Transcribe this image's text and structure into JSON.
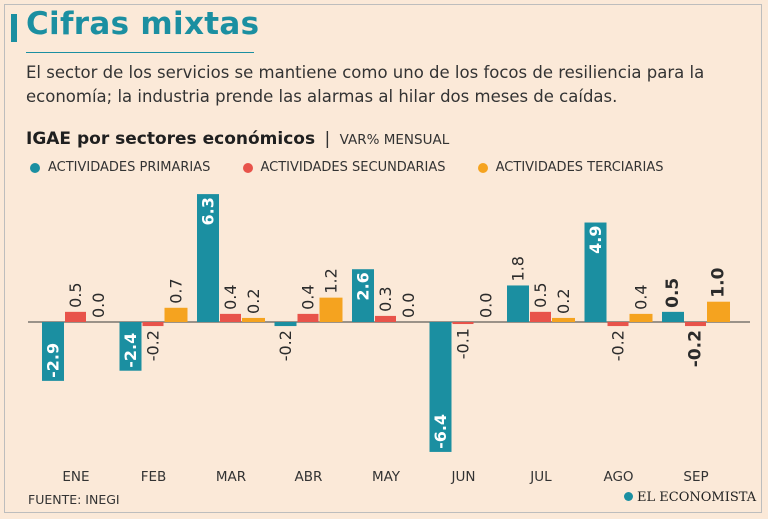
{
  "header": {
    "title": "Cifras mixtas",
    "subtitle": "El sector de los servicios se mantiene como uno de los focos de resiliencia para la economía; la industria prende las alarmas al hilar dos meses de caídas."
  },
  "chart_heading": {
    "title": "IGAE por sectores económicos",
    "separator": "|",
    "unit": "VAR% MENSUAL"
  },
  "legend": [
    {
      "label": "ACTIVIDADES PRIMARIAS",
      "color": "#1b8fa1"
    },
    {
      "label": "ACTIVIDADES SECUNDARIAS",
      "color": "#e8534a"
    },
    {
      "label": "ACTIVIDADES TERCIARIAS",
      "color": "#f5a31f"
    }
  ],
  "chart_data": {
    "type": "bar",
    "title": "IGAE por sectores económicos",
    "ylabel": "VAR% MENSUAL",
    "categories": [
      "ENE",
      "FEB",
      "MAR",
      "ABR",
      "MAY",
      "JUN",
      "JUL",
      "AGO",
      "SEP"
    ],
    "series": [
      {
        "name": "ACTIVIDADES PRIMARIAS",
        "color": "#1b8fa1",
        "values": [
          -2.9,
          -2.4,
          6.3,
          -0.2,
          2.6,
          -6.4,
          1.8,
          4.9,
          0.5
        ],
        "labels": [
          "-2.9",
          "-2.4",
          "6.3",
          "-0.2",
          "2.6",
          "-6.4",
          "1.8",
          "4.9",
          "0.5"
        ]
      },
      {
        "name": "ACTIVIDADES SECUNDARIAS",
        "color": "#e8534a",
        "values": [
          0.5,
          -0.2,
          0.4,
          0.4,
          0.3,
          -0.1,
          0.5,
          -0.2,
          -0.2
        ],
        "labels": [
          "0.5",
          "-0.2",
          "0.4",
          "0.4",
          "0.3",
          "-0.1",
          "0.5",
          "-0.2",
          "-0.2"
        ]
      },
      {
        "name": "ACTIVIDADES TERCIARIAS",
        "color": "#f5a31f",
        "values": [
          0.0,
          0.7,
          0.2,
          1.2,
          0.0,
          0.0,
          0.2,
          0.4,
          1.0
        ],
        "labels": [
          "0.0",
          "0.7",
          "0.2",
          "1.2",
          "0.0",
          "0.0",
          "0.2",
          "0.4",
          "1.0"
        ]
      }
    ],
    "highlight_category": "SEP",
    "ylim": [
      -6.4,
      6.3
    ],
    "grid": false,
    "legend": "top-left"
  },
  "footer": {
    "source": "FUENTE: INEGI",
    "brand": "EL ECONOMISTA"
  }
}
